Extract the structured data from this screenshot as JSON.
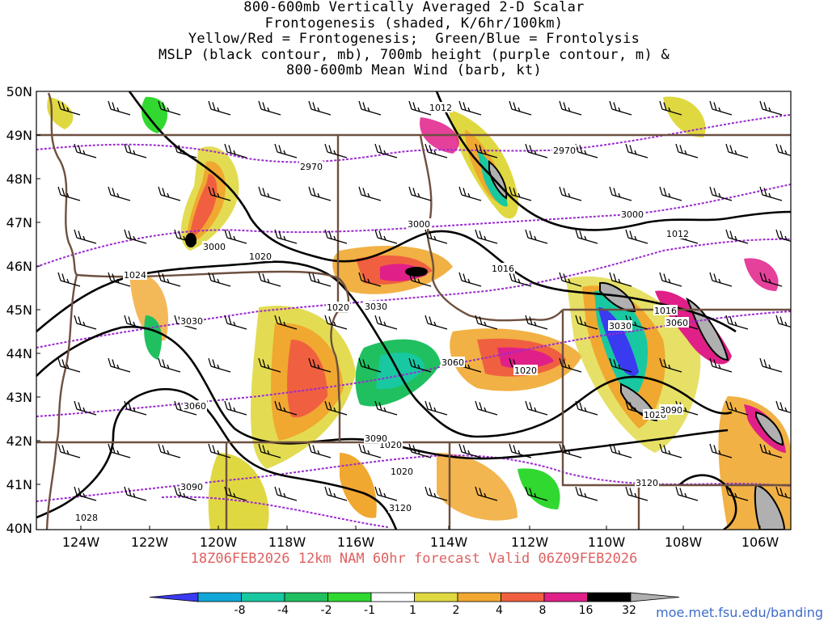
{
  "title_lines": [
    "800-600mb Vertically Averaged 2-D Scalar",
    "Frontogenesis (shaded, K/6hr/100km)",
    "Yellow/Red = Frontogenesis;  Green/Blue = Frontolysis",
    "MSLP (black contour, mb), 700mb height (purple contour, m) &",
    "800-600mb Mean Wind (barb, kt)"
  ],
  "lat_labels": [
    "50N",
    "49N",
    "48N",
    "47N",
    "46N",
    "45N",
    "44N",
    "43N",
    "42N",
    "41N",
    "40N"
  ],
  "lon_labels": [
    "124W",
    "122W",
    "120W",
    "118W",
    "116W",
    "114W",
    "112W",
    "110W",
    "108W",
    "106W"
  ],
  "footer": "18Z06FEB2026 12km NAM 60hr forecast Valid 06Z09FEB2026",
  "credit": "moe.met.fsu.edu/banding",
  "colorbar": {
    "labels": [
      "-8",
      "-4",
      "-2",
      "-1",
      "1",
      "2",
      "4",
      "8",
      "16",
      "32"
    ],
    "colors": [
      "#3a3af0",
      "#10a8d8",
      "#18c8a0",
      "#20c060",
      "#30d830",
      "#ffffff",
      "#e0d840",
      "#f0a830",
      "#f06040",
      "#e02088",
      "#000000",
      "#b0b0b0"
    ]
  },
  "isobar_labels": [
    "1012",
    "1012",
    "1016",
    "1016",
    "1020",
    "1020",
    "1020",
    "1020",
    "1020",
    "1020",
    "1024",
    "1028"
  ],
  "height_labels": [
    "2970",
    "2970",
    "3000",
    "3000",
    "3000",
    "3030",
    "3030",
    "3030",
    "3060",
    "3060",
    "3060",
    "3090",
    "3090",
    "3090",
    "3120",
    "3120"
  ],
  "colors": {
    "isobar": "#000000",
    "height": "#9a2bd0",
    "border": "#6e5040",
    "footer": "#e06060",
    "credit": "#3f6cc8"
  }
}
